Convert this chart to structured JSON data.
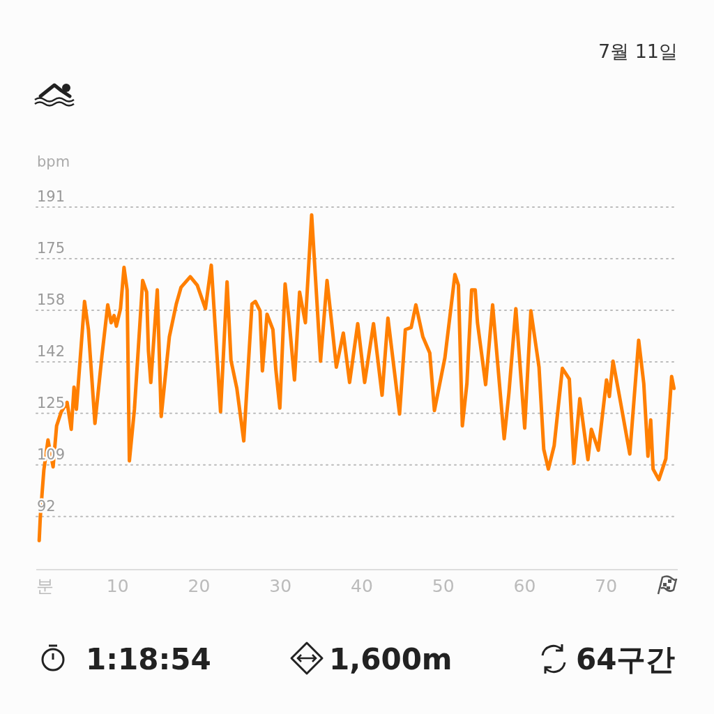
{
  "chart_data": {
    "type": "line",
    "subtitle": "7월 11일",
    "ylabel": "bpm",
    "xlabel": "분",
    "series": [
      {
        "color": "#ff7f00",
        "x": [
          0.36,
          0.5,
          0.93,
          1.44,
          2.07,
          2.5,
          3.07,
          3.79,
          4.3,
          4.64,
          4.93,
          5.93,
          6.41,
          7.21,
          8.07,
          8.78,
          9.2,
          9.55,
          9.84,
          10.35,
          10.78,
          11.16,
          11.44,
          12.06,
          13.07,
          13.56,
          13.78,
          14.07,
          14.87,
          15.35,
          16.35,
          17.2,
          17.78,
          18.92,
          19.78,
          20.78,
          21.5,
          22.64,
          23.44,
          23.92,
          24.64,
          25.49,
          26.5,
          26.92,
          27.49,
          27.78,
          28.35,
          29.07,
          29.43,
          29.92,
          30.57,
          31.06,
          31.72,
          32.35,
          33.06,
          33.83,
          34.92,
          35.72,
          36.35,
          36.86,
          37.72,
          38.49,
          39.49,
          40.34,
          41.43,
          42.48,
          43.2,
          44.63,
          45.34,
          46.06,
          46.63,
          47.49,
          48.34,
          48.91,
          49.77,
          50.2,
          51.43,
          51.86,
          52.34,
          52.9,
          53.48,
          53.92,
          54.2,
          54.77,
          55.2,
          56.06,
          57.48,
          58.06,
          58.91,
          60,
          60.76,
          61.76,
          62.34,
          62.91,
          63.62,
          64.63,
          65.48,
          66.05,
          66.77,
          67.77,
          68.19,
          69.05,
          70.05,
          70.4,
          70.85,
          71.62,
          72.91,
          74,
          74.63,
          75.14,
          75.48,
          75.77,
          76.48,
          77.34,
          78.05,
          78.34
        ],
        "values": [
          84.3,
          92,
          106.8,
          116.5,
          107.9,
          121,
          125.5,
          128.5,
          119.9,
          133.4,
          126.3,
          160.8,
          151.8,
          121.8,
          143.5,
          159.7,
          154,
          156.3,
          152.9,
          158.5,
          171.7,
          164.5,
          109.8,
          126.3,
          167.5,
          163.8,
          145,
          134.9,
          164.5,
          124,
          149.5,
          160,
          165.3,
          168.7,
          166,
          158.5,
          172.4,
          125.5,
          167.1,
          142,
          133,
          116.2,
          160,
          160.8,
          157.8,
          138.6,
          156.7,
          151.8,
          139,
          126.7,
          166.4,
          154.8,
          135.7,
          163.8,
          154,
          188.5,
          141.7,
          167.5,
          152.5,
          139.8,
          150.7,
          134.9,
          153.7,
          134.9,
          153.7,
          130.8,
          155.5,
          124.8,
          151.8,
          152.5,
          159.7,
          149.5,
          144.3,
          125.9,
          137.2,
          142.8,
          169.4,
          166,
          121,
          134.5,
          164.5,
          164.5,
          154,
          142.8,
          134.2,
          159.7,
          116.9,
          131.5,
          158.5,
          120.3,
          157.8,
          139.8,
          113.5,
          107.2,
          114.7,
          139.4,
          136,
          109,
          129.7,
          110.2,
          119.9,
          113.2,
          135.7,
          130.4,
          141.7,
          130.8,
          112,
          148.4,
          134.5,
          111.3,
          122.9,
          107.2,
          103.8,
          110.5,
          136.8,
          133
        ]
      }
    ],
    "xlim": [
      0,
      78.8
    ],
    "xticks": [
      10,
      20,
      30,
      40,
      50,
      60,
      70
    ],
    "ylim": [
      75,
      191
    ],
    "yticks": [
      92,
      {
        "value": 108.5,
        "label": "109"
      },
      125,
      {
        "value": 141.5,
        "label": "142"
      },
      158,
      {
        "value": 174.5,
        "label": "175"
      },
      191
    ],
    "grid": "y",
    "line_style": "solid",
    "marker": "none",
    "annotations": [
      "1:18:54",
      "1,600m",
      "64구간"
    ]
  }
}
